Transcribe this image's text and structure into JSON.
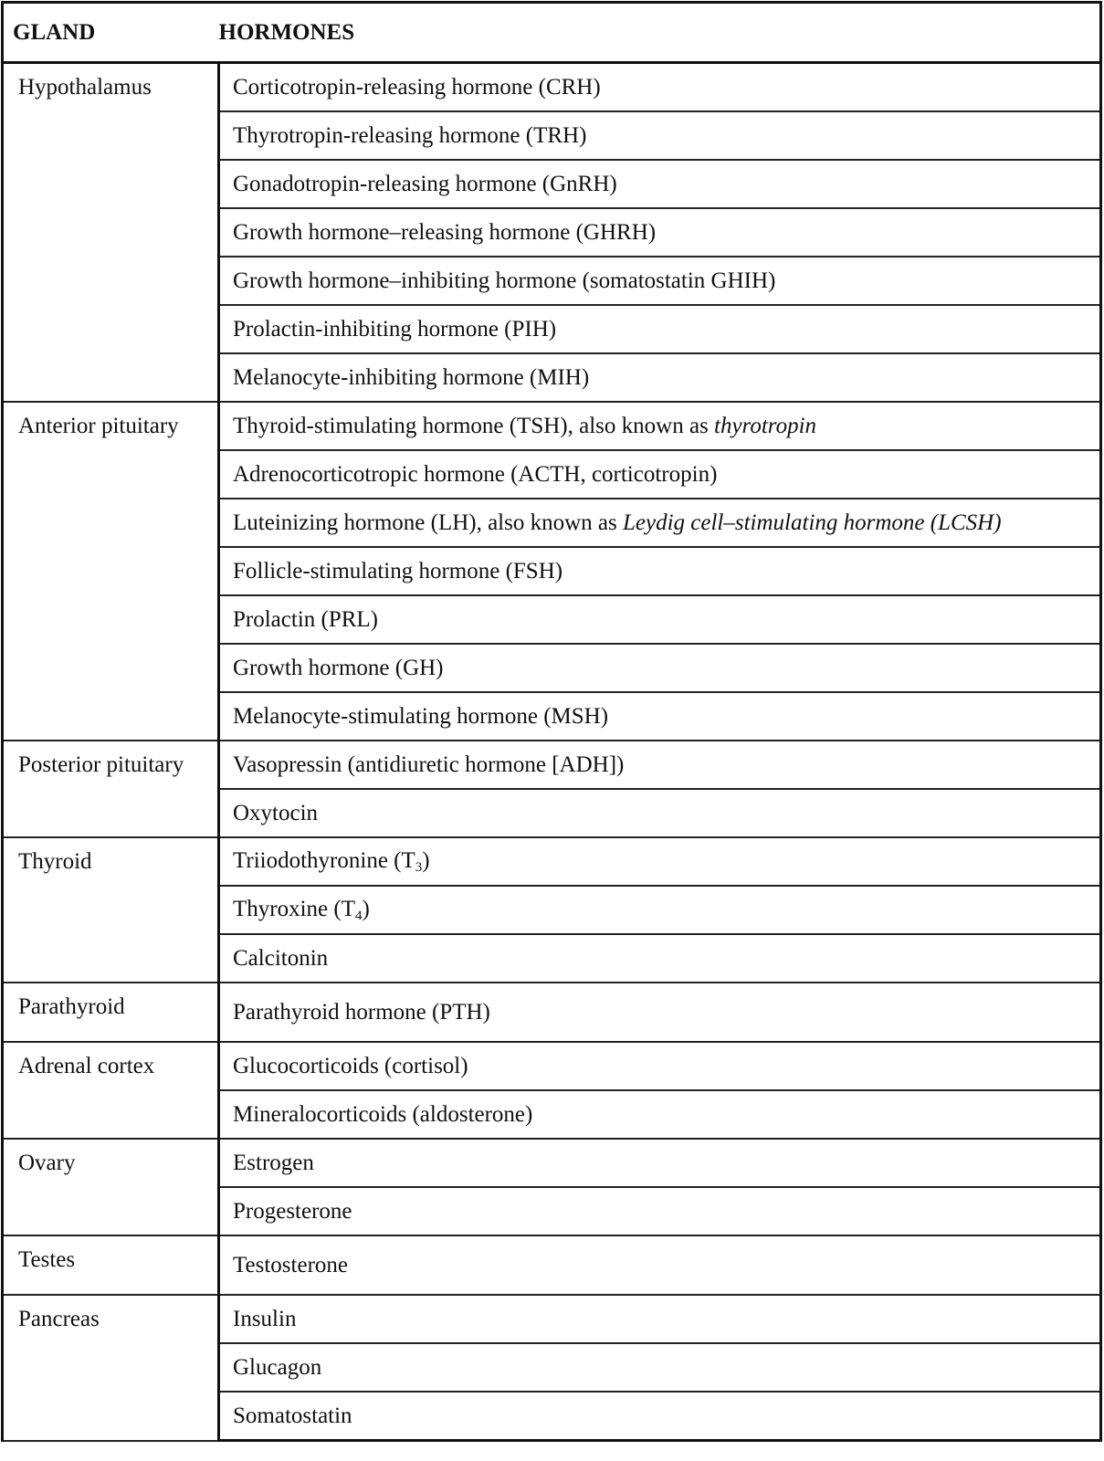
{
  "headers": {
    "gland": "GLAND",
    "hormones": "HORMONES"
  },
  "groups": [
    {
      "gland": "Hypothalamus",
      "hormones": [
        [
          {
            "t": "Corticotropin-releasing hormone (CRH)"
          }
        ],
        [
          {
            "t": "Thyrotropin-releasing hormone (TRH)"
          }
        ],
        [
          {
            "t": "Gonadotropin-releasing hormone (GnRH)"
          }
        ],
        [
          {
            "t": "Growth hormone–releasing hormone (GHRH)"
          }
        ],
        [
          {
            "t": "Growth hormone–inhibiting hormone (somatostatin GHIH)"
          }
        ],
        [
          {
            "t": "Prolactin-inhibiting hormone (PIH)"
          }
        ],
        [
          {
            "t": "Melanocyte-inhibiting hormone (MIH)"
          }
        ]
      ]
    },
    {
      "gland": "Anterior pituitary",
      "hormones": [
        [
          {
            "t": "Thyroid-stimulating hormone (TSH), also known as "
          },
          {
            "t": "thyrotropin",
            "s": "italic"
          }
        ],
        [
          {
            "t": "Adrenocorticotropic hormone (ACTH, corticotropin)"
          }
        ],
        [
          {
            "t": "Luteinizing hormone (LH), also known as "
          },
          {
            "t": "Leydig cell–stimulating hormone (LCSH)",
            "s": "italic"
          }
        ],
        [
          {
            "t": "Follicle-stimulating hormone (FSH)"
          }
        ],
        [
          {
            "t": "Prolactin (PRL)"
          }
        ],
        [
          {
            "t": "Growth hormone (GH)"
          }
        ],
        [
          {
            "t": "Melanocyte-stimulating hormone (MSH)"
          }
        ]
      ]
    },
    {
      "gland": "Posterior pituitary",
      "hormones": [
        [
          {
            "t": "Vasopressin (antidiuretic hormone [ADH])"
          }
        ],
        [
          {
            "t": "Oxytocin"
          }
        ]
      ]
    },
    {
      "gland": "Thyroid",
      "hormones": [
        [
          {
            "t": "Triiodothyronine (T"
          },
          {
            "t": "3",
            "s": "sub"
          },
          {
            "t": ")"
          }
        ],
        [
          {
            "t": "Thyroxine (T"
          },
          {
            "t": "4",
            "s": "sub"
          },
          {
            "t": ")"
          }
        ],
        [
          {
            "t": "Calcitonin"
          }
        ]
      ]
    },
    {
      "gland": "Parathyroid",
      "hormones": [
        [
          {
            "t": "Parathyroid hormone (PTH)"
          }
        ]
      ]
    },
    {
      "gland": "Adrenal cortex",
      "hormones": [
        [
          {
            "t": "Glucocorticoids (cortisol)"
          }
        ],
        [
          {
            "t": "Mineralocorticoids (aldosterone)"
          }
        ]
      ]
    },
    {
      "gland": "Ovary",
      "hormones": [
        [
          {
            "t": "Estrogen"
          }
        ],
        [
          {
            "t": "Progesterone"
          }
        ]
      ]
    },
    {
      "gland": "Testes",
      "hormones": [
        [
          {
            "t": "Testosterone"
          }
        ]
      ]
    },
    {
      "gland": "Pancreas",
      "hormones": [
        [
          {
            "t": "Insulin"
          }
        ],
        [
          {
            "t": "Glucagon"
          }
        ],
        [
          {
            "t": "Somatostatin"
          }
        ]
      ]
    }
  ]
}
